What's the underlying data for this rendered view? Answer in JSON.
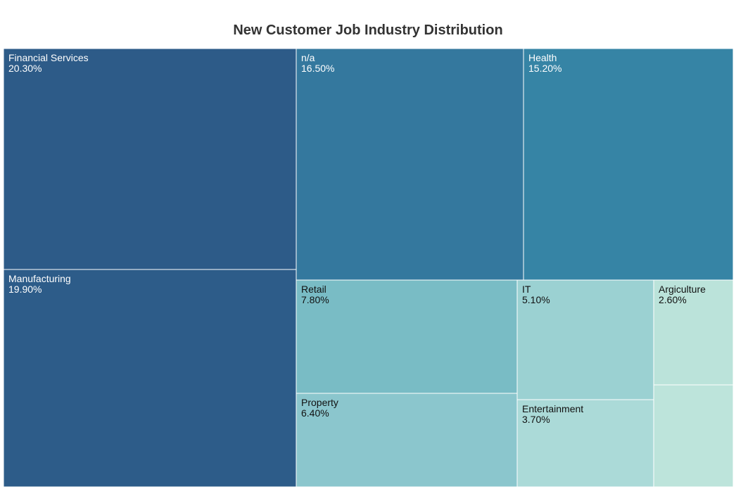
{
  "chart_data": {
    "type": "treemap",
    "title": "New Customer Job Industry Distribution",
    "value_unit": "%",
    "items": [
      {
        "label": "Financial Services",
        "value": 20.3,
        "value_label": "20.30%",
        "color": "#2d5b88",
        "text_color": "#ffffff"
      },
      {
        "label": "Manufacturing",
        "value": 19.9,
        "value_label": "19.90%",
        "color": "#2d5c89",
        "text_color": "#ffffff"
      },
      {
        "label": "n/a",
        "value": 16.5,
        "value_label": "16.50%",
        "color": "#34789e",
        "text_color": "#ffffff"
      },
      {
        "label": "Health",
        "value": 15.2,
        "value_label": "15.20%",
        "color": "#3684a5",
        "text_color": "#ffffff"
      },
      {
        "label": "Retail",
        "value": 7.8,
        "value_label": "7.80%",
        "color": "#79bcc5",
        "text_color": "#111111"
      },
      {
        "label": "Property",
        "value": 6.4,
        "value_label": "6.40%",
        "color": "#8bc6cd",
        "text_color": "#111111"
      },
      {
        "label": "IT",
        "value": 5.1,
        "value_label": "5.10%",
        "color": "#9bd1d2",
        "text_color": "#111111"
      },
      {
        "label": "Entertainment",
        "value": 3.7,
        "value_label": "3.70%",
        "color": "#abdad8",
        "text_color": "#111111"
      },
      {
        "label": "Argiculture",
        "value": 2.6,
        "value_label": "2.60%",
        "color": "#bbe3da",
        "text_color": "#111111"
      },
      {
        "label": "",
        "value": 2.4,
        "value_label": "",
        "color": "#bde4db",
        "text_color": "#111111"
      }
    ]
  }
}
